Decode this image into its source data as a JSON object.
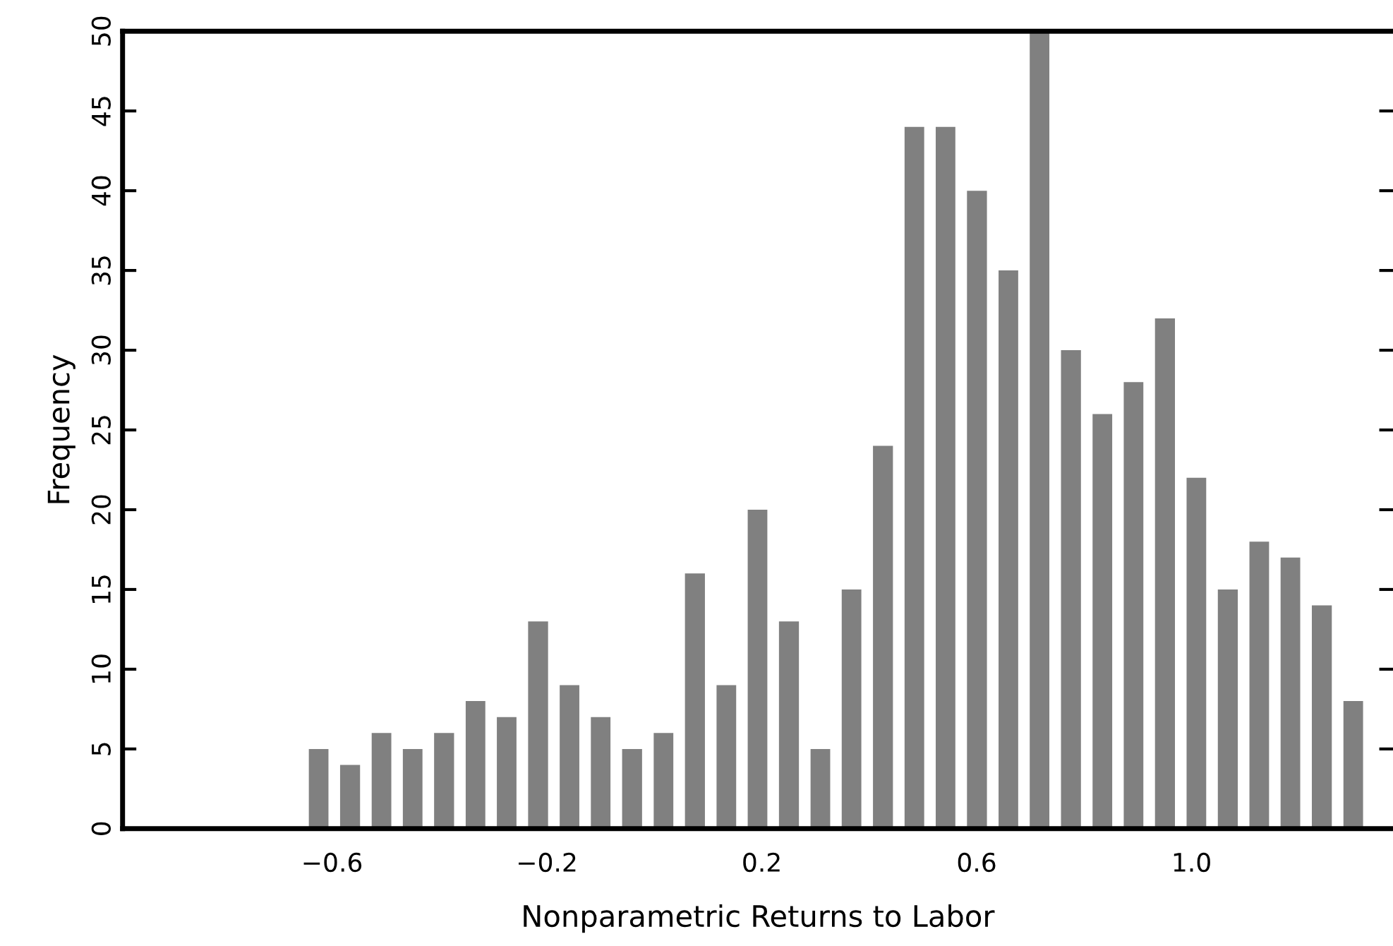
{
  "chart_data": {
    "type": "histogram",
    "xlabel": "Nonparametric Returns to Labor",
    "ylabel": "Frequency",
    "bins": [
      -0.654,
      -0.596,
      -0.537,
      -0.479,
      -0.421,
      -0.362,
      -0.304,
      -0.246,
      -0.187,
      -0.129,
      -0.071,
      -0.012,
      0.046,
      0.105,
      0.163,
      0.221,
      0.28,
      0.338,
      0.396,
      0.455,
      0.513,
      0.571,
      0.63,
      0.688,
      0.746,
      0.805,
      0.863,
      0.921,
      0.98,
      1.038,
      1.097,
      1.155,
      1.213,
      1.272,
      1.33
    ],
    "values": [
      5,
      4,
      6,
      5,
      6,
      8,
      7,
      13,
      9,
      7,
      5,
      6,
      16,
      9,
      20,
      13,
      5,
      15,
      24,
      44,
      44,
      40,
      35,
      50,
      30,
      26,
      28,
      32,
      22,
      15,
      18,
      17,
      14,
      8
    ],
    "color": "#808080",
    "xlim": [
      -0.99,
      1.375
    ],
    "xticks": [
      {
        "value": -0.6,
        "label": "−0.6"
      },
      {
        "value": -0.2,
        "label": "−0.2"
      },
      {
        "value": 0.2,
        "label": "0.2"
      },
      {
        "value": 0.6,
        "label": "0.6"
      },
      {
        "value": 1.0,
        "label": "1.0"
      }
    ],
    "ylim": [
      0,
      50
    ],
    "yticks": [
      0,
      5,
      10,
      15,
      20,
      25,
      30,
      35,
      40,
      45,
      50
    ],
    "grid": false
  }
}
